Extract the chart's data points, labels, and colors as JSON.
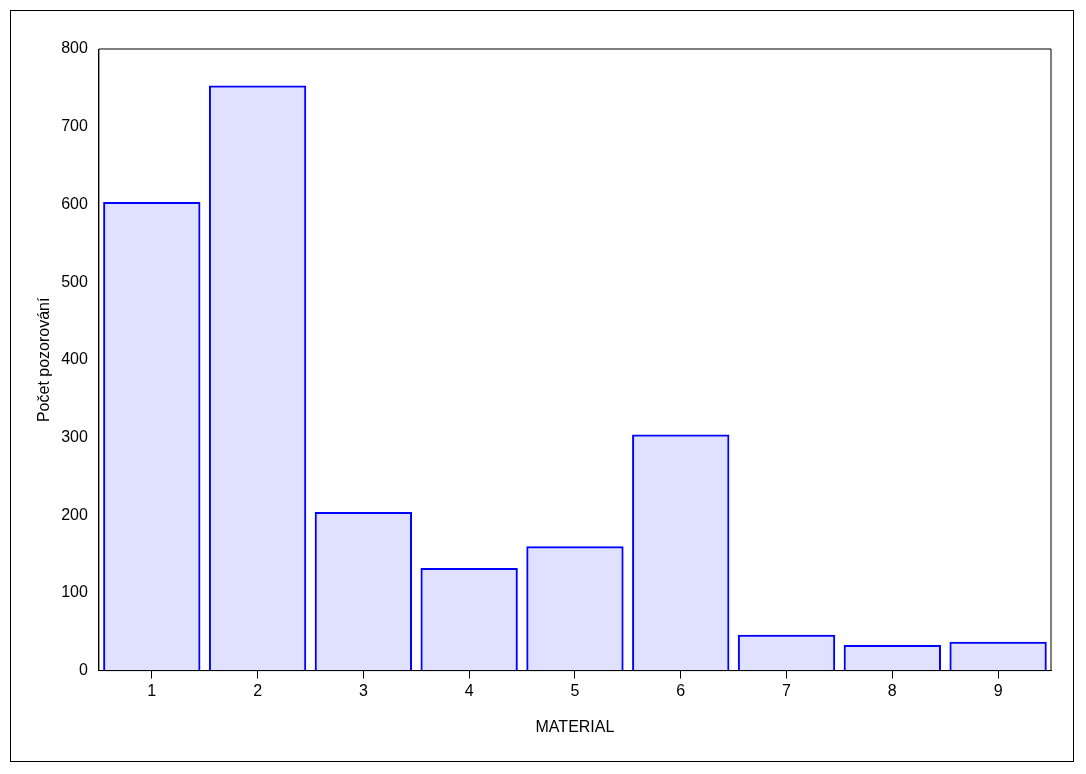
{
  "chart_data": {
    "type": "bar",
    "xlabel": "MATERIAL",
    "ylabel": "Počet pozorování",
    "categories": [
      "1",
      "2",
      "3",
      "4",
      "5",
      "6",
      "7",
      "8",
      "9"
    ],
    "values": [
      603,
      753,
      204,
      132,
      160,
      304,
      46,
      33,
      37
    ],
    "color": "#0000ff",
    "ylim": [
      0,
      800
    ],
    "yticks": [
      0,
      100,
      200,
      300,
      400,
      500,
      600,
      700,
      800
    ],
    "grid": false,
    "legend": false
  }
}
